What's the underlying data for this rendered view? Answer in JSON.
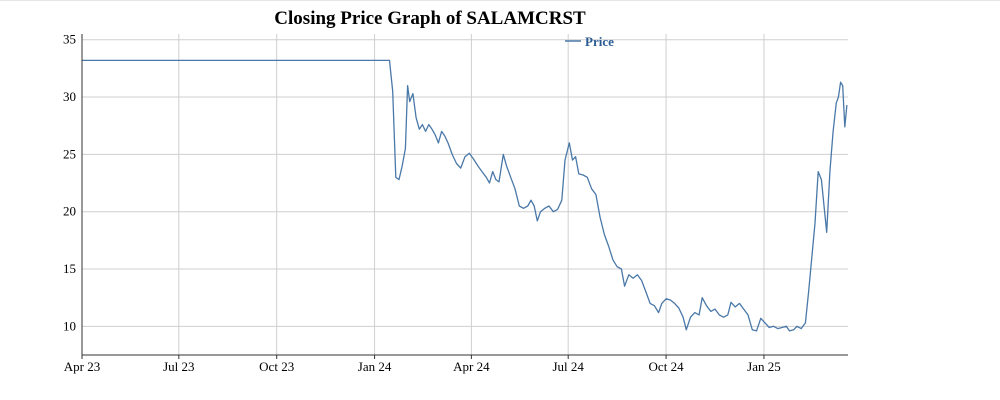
{
  "title": "Closing Price Graph of SALAMCRST",
  "chart_data": {
    "type": "line",
    "title": "Closing Price Graph of SALAMCRST",
    "xlabel": "",
    "ylabel": "",
    "ylim": [
      7.5,
      35.5
    ],
    "xlim": [
      "2023-04-01",
      "2025-03-21"
    ],
    "y_ticks": [
      10,
      15,
      20,
      25,
      30,
      35
    ],
    "x_ticks": [
      {
        "date": "2023-04-01",
        "label": "Apr 23"
      },
      {
        "date": "2023-07-01",
        "label": "Jul 23"
      },
      {
        "date": "2023-10-01",
        "label": "Oct 23"
      },
      {
        "date": "2024-01-01",
        "label": "Jan 24"
      },
      {
        "date": "2024-04-01",
        "label": "Apr 24"
      },
      {
        "date": "2024-07-01",
        "label": "Jul 24"
      },
      {
        "date": "2024-10-01",
        "label": "Oct 24"
      },
      {
        "date": "2025-01-01",
        "label": "Jan 25"
      }
    ],
    "grid": true,
    "legend": "top-right",
    "series": [
      {
        "name": "Price",
        "color": "#4a78a8",
        "points": [
          [
            "2023-04-01",
            33.2
          ],
          [
            "2024-01-15",
            33.2
          ],
          [
            "2024-01-18",
            30.5
          ],
          [
            "2024-01-21",
            23.0
          ],
          [
            "2024-01-24",
            22.8
          ],
          [
            "2024-01-27",
            24.0
          ],
          [
            "2024-01-30",
            25.5
          ],
          [
            "2024-02-01",
            31.0
          ],
          [
            "2024-02-03",
            29.6
          ],
          [
            "2024-02-06",
            30.3
          ],
          [
            "2024-02-09",
            28.2
          ],
          [
            "2024-02-12",
            27.2
          ],
          [
            "2024-02-15",
            27.6
          ],
          [
            "2024-02-18",
            27.0
          ],
          [
            "2024-02-21",
            27.6
          ],
          [
            "2024-02-24",
            27.2
          ],
          [
            "2024-02-27",
            26.7
          ],
          [
            "2024-03-01",
            26.0
          ],
          [
            "2024-03-04",
            27.0
          ],
          [
            "2024-03-07",
            26.6
          ],
          [
            "2024-03-10",
            26.0
          ],
          [
            "2024-03-14",
            25.0
          ],
          [
            "2024-03-18",
            24.2
          ],
          [
            "2024-03-22",
            23.8
          ],
          [
            "2024-03-26",
            24.8
          ],
          [
            "2024-03-30",
            25.1
          ],
          [
            "2024-04-03",
            24.6
          ],
          [
            "2024-04-07",
            24.0
          ],
          [
            "2024-04-11",
            23.5
          ],
          [
            "2024-04-15",
            23.0
          ],
          [
            "2024-04-18",
            22.5
          ],
          [
            "2024-04-21",
            23.5
          ],
          [
            "2024-04-24",
            22.8
          ],
          [
            "2024-04-27",
            22.6
          ],
          [
            "2024-05-01",
            25.0
          ],
          [
            "2024-05-04",
            24.0
          ],
          [
            "2024-05-08",
            23.0
          ],
          [
            "2024-05-12",
            22.0
          ],
          [
            "2024-05-16",
            20.5
          ],
          [
            "2024-05-20",
            20.3
          ],
          [
            "2024-05-24",
            20.5
          ],
          [
            "2024-05-27",
            21.0
          ],
          [
            "2024-05-30",
            20.5
          ],
          [
            "2024-06-02",
            19.2
          ],
          [
            "2024-06-05",
            20.0
          ],
          [
            "2024-06-09",
            20.3
          ],
          [
            "2024-06-13",
            20.5
          ],
          [
            "2024-06-17",
            20.0
          ],
          [
            "2024-06-21",
            20.2
          ],
          [
            "2024-06-25",
            21.0
          ],
          [
            "2024-06-28",
            24.5
          ],
          [
            "2024-07-02",
            26.0
          ],
          [
            "2024-07-05",
            24.5
          ],
          [
            "2024-07-08",
            24.8
          ],
          [
            "2024-07-11",
            23.3
          ],
          [
            "2024-07-15",
            23.2
          ],
          [
            "2024-07-19",
            23.0
          ],
          [
            "2024-07-23",
            22.0
          ],
          [
            "2024-07-27",
            21.5
          ],
          [
            "2024-07-31",
            19.5
          ],
          [
            "2024-08-04",
            18.0
          ],
          [
            "2024-08-08",
            17.0
          ],
          [
            "2024-08-12",
            15.8
          ],
          [
            "2024-08-16",
            15.2
          ],
          [
            "2024-08-20",
            15.0
          ],
          [
            "2024-08-23",
            13.5
          ],
          [
            "2024-08-27",
            14.5
          ],
          [
            "2024-08-31",
            14.2
          ],
          [
            "2024-09-04",
            14.5
          ],
          [
            "2024-09-08",
            14.0
          ],
          [
            "2024-09-12",
            13.0
          ],
          [
            "2024-09-16",
            12.0
          ],
          [
            "2024-09-20",
            11.8
          ],
          [
            "2024-09-24",
            11.2
          ],
          [
            "2024-09-27",
            12.0
          ],
          [
            "2024-10-01",
            12.4
          ],
          [
            "2024-10-05",
            12.3
          ],
          [
            "2024-10-09",
            12.0
          ],
          [
            "2024-10-13",
            11.6
          ],
          [
            "2024-10-17",
            10.8
          ],
          [
            "2024-10-20",
            9.7
          ],
          [
            "2024-10-24",
            10.8
          ],
          [
            "2024-10-28",
            11.2
          ],
          [
            "2024-11-01",
            11.0
          ],
          [
            "2024-11-04",
            12.5
          ],
          [
            "2024-11-08",
            11.8
          ],
          [
            "2024-11-12",
            11.3
          ],
          [
            "2024-11-16",
            11.5
          ],
          [
            "2024-11-20",
            11.0
          ],
          [
            "2024-11-24",
            10.8
          ],
          [
            "2024-11-28",
            11.0
          ],
          [
            "2024-12-01",
            12.1
          ],
          [
            "2024-12-05",
            11.7
          ],
          [
            "2024-12-09",
            12.0
          ],
          [
            "2024-12-13",
            11.5
          ],
          [
            "2024-12-17",
            11.0
          ],
          [
            "2024-12-21",
            9.7
          ],
          [
            "2024-12-25",
            9.6
          ],
          [
            "2024-12-29",
            10.7
          ],
          [
            "2025-01-02",
            10.3
          ],
          [
            "2025-01-06",
            9.9
          ],
          [
            "2025-01-10",
            10.0
          ],
          [
            "2025-01-14",
            9.8
          ],
          [
            "2025-01-18",
            9.9
          ],
          [
            "2025-01-22",
            10.0
          ],
          [
            "2025-01-25",
            9.6
          ],
          [
            "2025-01-29",
            9.7
          ],
          [
            "2025-02-01",
            10.0
          ],
          [
            "2025-02-05",
            9.8
          ],
          [
            "2025-02-09",
            10.3
          ],
          [
            "2025-02-12",
            13.0
          ],
          [
            "2025-02-15",
            16.0
          ],
          [
            "2025-02-18",
            19.0
          ],
          [
            "2025-02-21",
            23.5
          ],
          [
            "2025-02-24",
            22.8
          ],
          [
            "2025-02-27",
            20.0
          ],
          [
            "2025-03-01",
            18.2
          ],
          [
            "2025-03-04",
            23.5
          ],
          [
            "2025-03-07",
            27.0
          ],
          [
            "2025-03-10",
            29.5
          ],
          [
            "2025-03-12",
            30.0
          ],
          [
            "2025-03-14",
            31.3
          ],
          [
            "2025-03-16",
            31.0
          ],
          [
            "2025-03-18",
            27.4
          ],
          [
            "2025-03-20",
            29.3
          ]
        ]
      }
    ]
  }
}
